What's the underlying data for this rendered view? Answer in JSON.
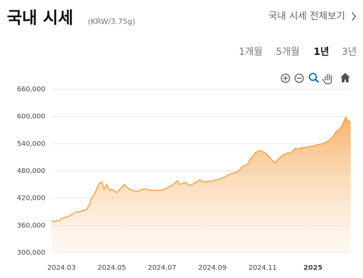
{
  "header": {
    "title": "국내 시세",
    "unit": "(KRW/3.75g)",
    "link": "국내 시세 전체보기"
  },
  "ranges": [
    "1개월",
    "5개월",
    "1년",
    "3년"
  ],
  "selected_range": 2,
  "chart_data": {
    "type": "area",
    "color": "#f0a040",
    "categories": [
      null,
      null,
      null,
      null,
      "2024.03",
      null,
      null,
      null,
      null,
      null,
      null,
      null,
      null,
      null,
      null,
      null,
      null,
      null,
      null,
      null,
      null,
      null,
      null,
      null,
      "2024.05",
      null,
      null,
      null,
      null,
      null,
      null,
      null,
      null,
      null,
      null,
      null,
      null,
      null,
      null,
      null,
      null,
      null,
      null,
      null,
      "2024.07",
      null,
      null,
      null,
      null,
      null,
      null,
      null,
      null,
      null,
      null,
      null,
      null,
      null,
      null,
      null,
      null,
      null,
      null,
      null,
      "2024.09",
      null,
      null,
      null,
      null,
      null,
      null,
      null,
      null,
      null,
      null,
      null,
      null,
      null,
      null,
      null,
      null,
      null,
      null,
      null,
      "2024.11",
      null,
      null,
      null,
      null,
      null,
      null,
      null,
      null,
      null,
      null,
      null,
      null,
      null,
      null,
      null,
      null,
      null,
      null,
      null,
      "2025",
      null,
      null,
      null,
      null,
      null,
      null,
      null,
      null,
      null,
      null,
      null,
      null,
      null,
      null,
      null
    ],
    "values": [
      370000,
      368000,
      371000,
      370000,
      375000,
      377000,
      378000,
      380000,
      384000,
      387000,
      390000,
      389000,
      392000,
      393000,
      395000,
      405000,
      420000,
      428000,
      440000,
      452000,
      455000,
      440000,
      450000,
      437000,
      440000,
      436000,
      432000,
      438000,
      444000,
      450000,
      444000,
      440000,
      438000,
      436000,
      435000,
      437000,
      439000,
      440000,
      439000,
      437000,
      438000,
      436000,
      438000,
      437000,
      438000,
      440000,
      443000,
      446000,
      448000,
      453000,
      458000,
      450000,
      452000,
      455000,
      452000,
      448000,
      450000,
      454000,
      457000,
      460000,
      457000,
      455000,
      457000,
      458000,
      457000,
      460000,
      461000,
      462000,
      465000,
      467000,
      470000,
      473000,
      475000,
      477000,
      478000,
      484000,
      490000,
      492000,
      495000,
      505000,
      512000,
      520000,
      523000,
      525000,
      522000,
      520000,
      515000,
      508000,
      502000,
      498000,
      505000,
      510000,
      515000,
      517000,
      520000,
      518000,
      524000,
      530000,
      528000,
      530000,
      531000,
      532000,
      533000,
      534000,
      535000,
      536000,
      538000,
      539000,
      540000,
      543000,
      546000,
      550000,
      556000,
      565000,
      570000,
      575000,
      585000,
      598000,
      590000,
      588000
    ],
    "ylim": [
      300000,
      660000
    ],
    "yticks": [
      {
        "value": 300000,
        "label": "300,000"
      },
      {
        "value": 360000,
        "label": "360,000"
      },
      {
        "value": 420000,
        "label": "420,000"
      },
      {
        "value": 480000,
        "label": "480,000"
      },
      {
        "value": 540000,
        "label": "540,000"
      },
      {
        "value": 600000,
        "label": "600,000"
      },
      {
        "value": 660000,
        "label": "660,000"
      }
    ],
    "grid": true
  }
}
